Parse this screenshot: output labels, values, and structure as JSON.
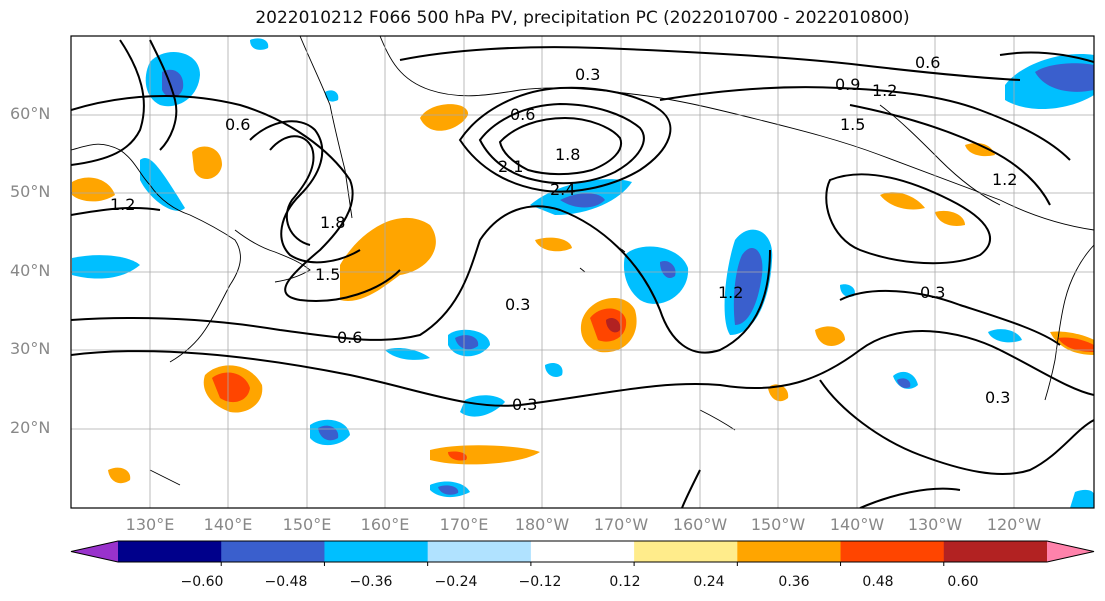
{
  "title": "2022010212 F066 500 hPa PV, precipitation PC (2022010700 - 2022010800)",
  "lat_labels": [
    "60°N",
    "50°N",
    "40°N",
    "30°N",
    "20°N"
  ],
  "lon_labels": [
    "130°E",
    "140°E",
    "150°E",
    "160°E",
    "170°E",
    "180°W",
    "170°W",
    "160°W",
    "150°W",
    "140°W",
    "130°W",
    "120°W"
  ],
  "contour_labels": [
    "0.3",
    "0.6",
    "0.9",
    "1.2",
    "1.5",
    "1.8",
    "2.1",
    "2.4",
    "0.6",
    "1.2",
    "0.3",
    "0.3",
    "1.2",
    "0.6",
    "1.5",
    "1.8",
    "0.3",
    "0.6",
    "1.2",
    "0.3"
  ],
  "colorbar": {
    "ticks": [
      "−0.60",
      "−0.48",
      "−0.36",
      "−0.24",
      "−0.12",
      "0.12",
      "0.24",
      "0.36",
      "0.48",
      "0.60"
    ],
    "colors": [
      "#9932cc",
      "#00008b",
      "#3a5fcd",
      "#00bfff",
      "#b0e2ff",
      "#ffffff",
      "#ffec8b",
      "#ffa500",
      "#ff4500",
      "#b22222",
      "#ff82ab"
    ]
  }
}
